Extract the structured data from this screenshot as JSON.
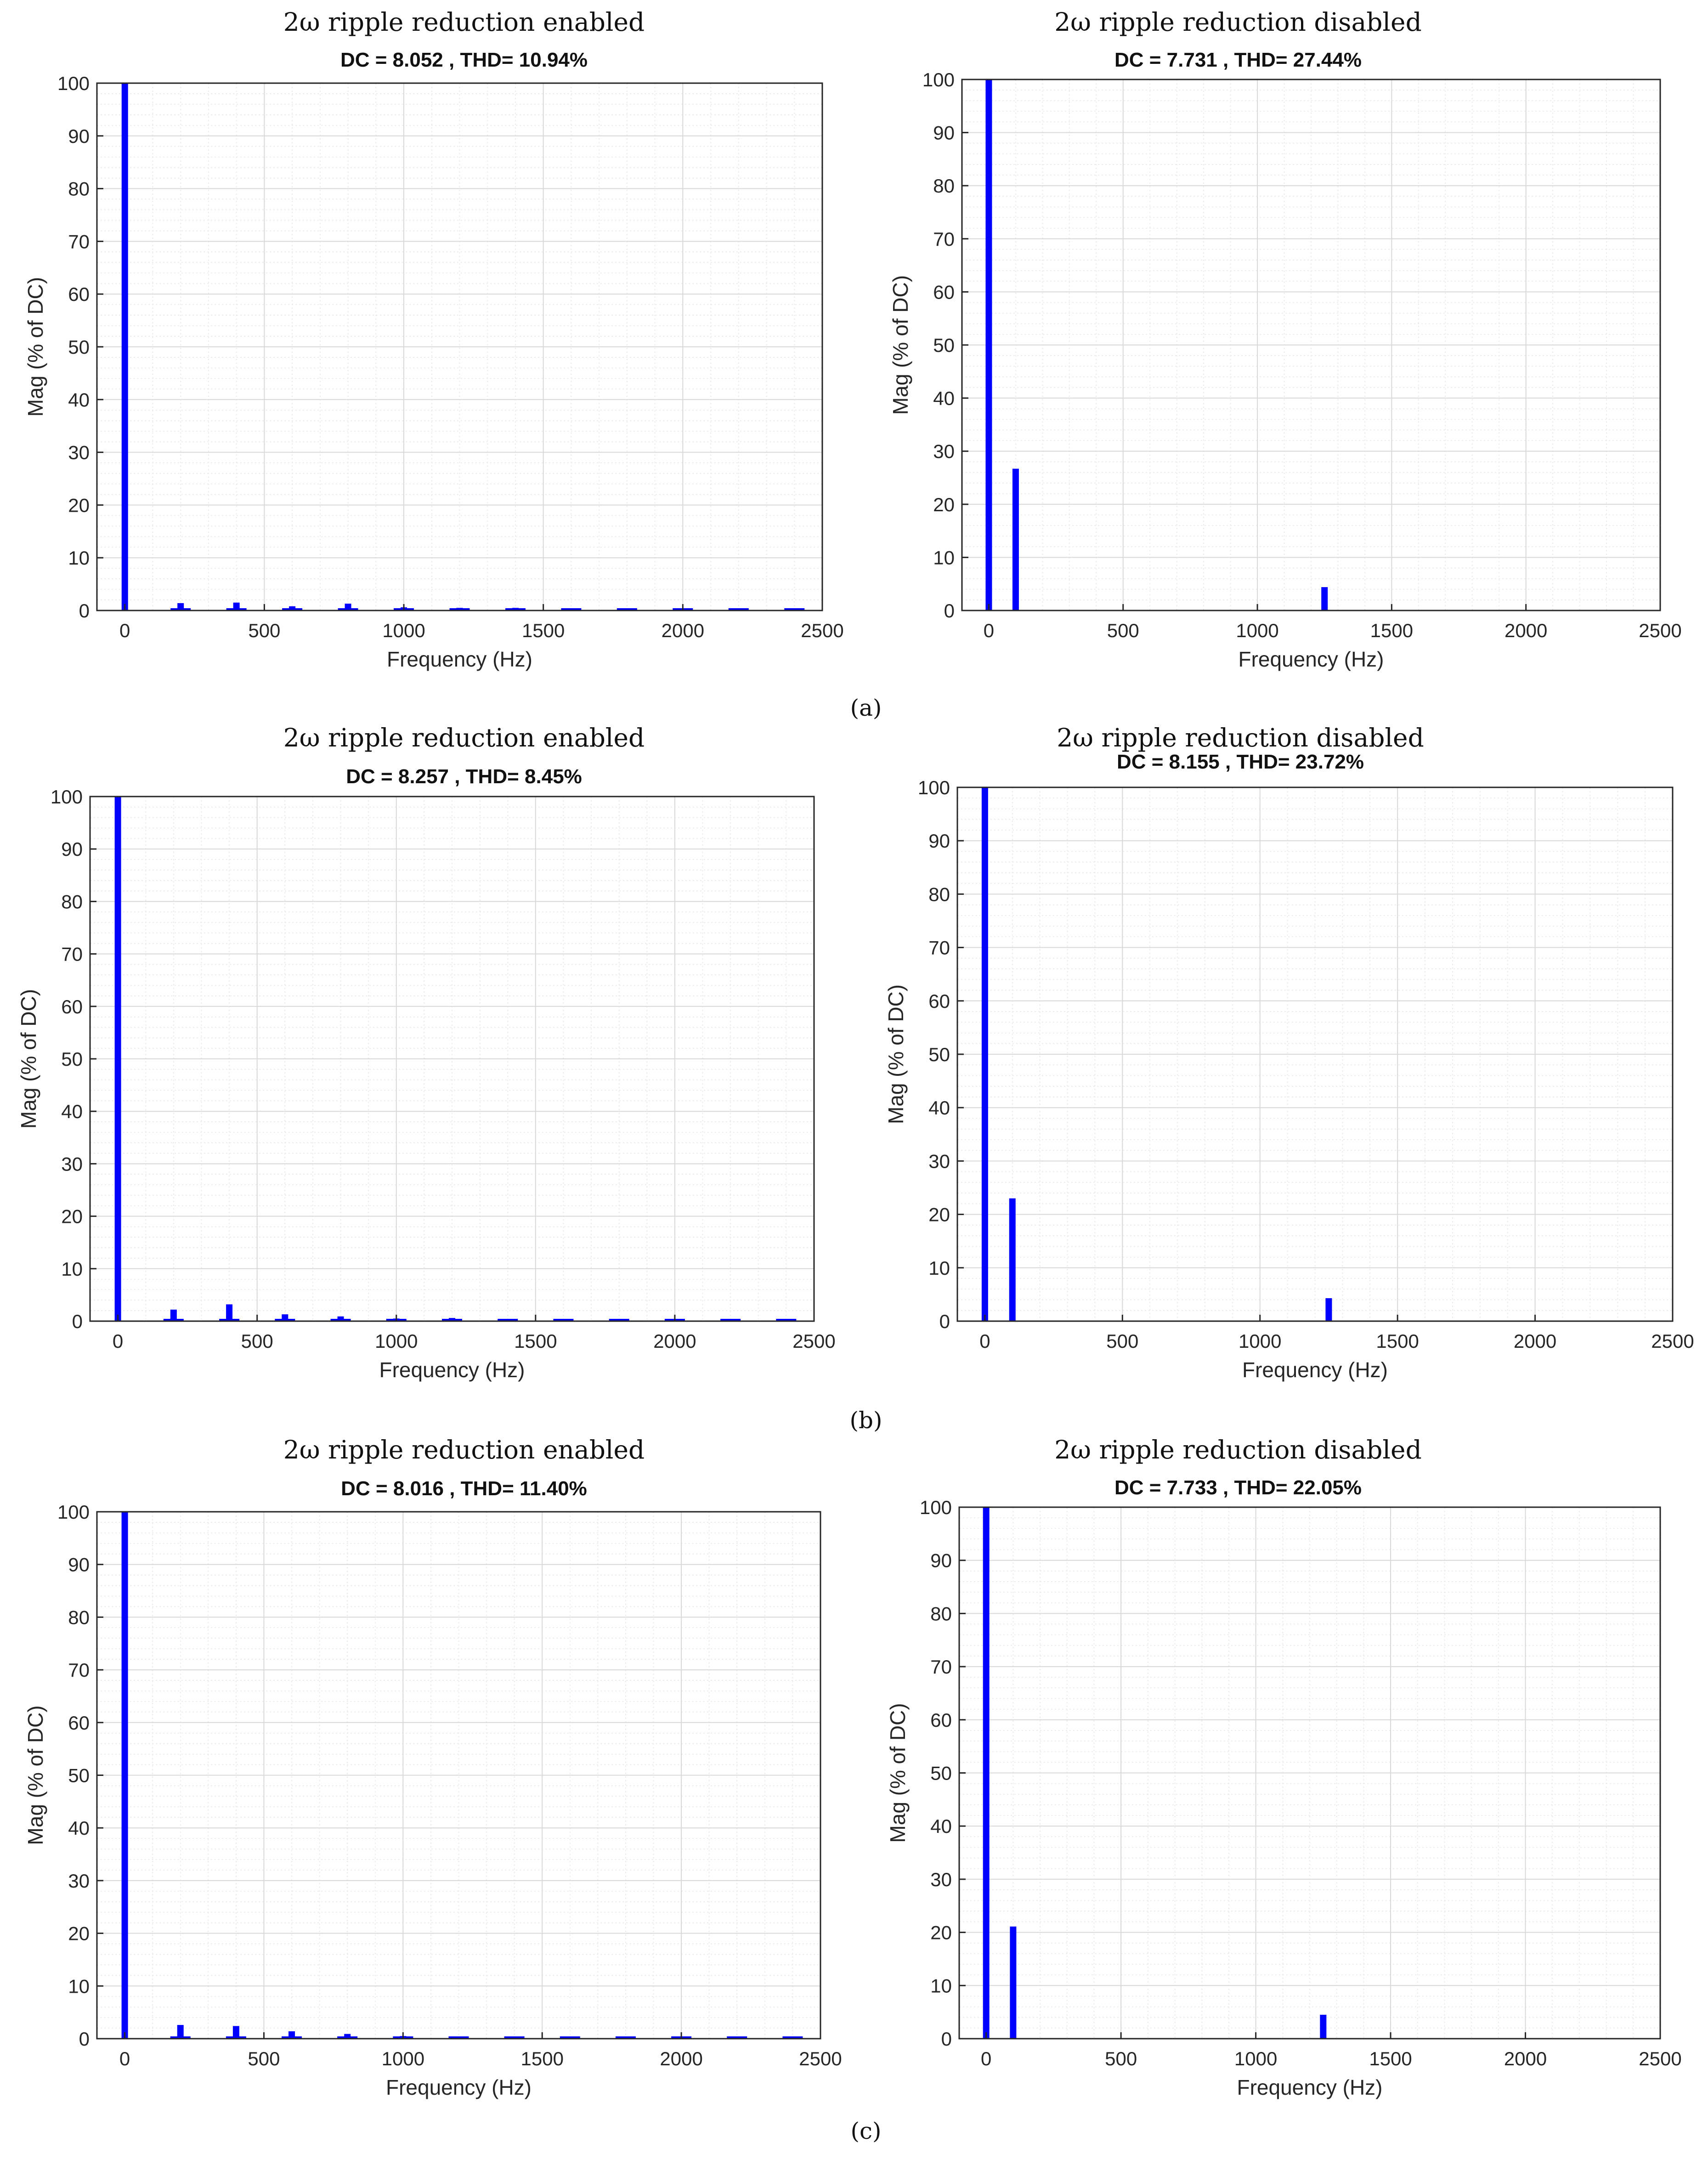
{
  "figure": {
    "captions": [
      "(a)",
      "(b)",
      "(c)"
    ],
    "bar_color": "#0000ff",
    "grid_color": "#d9d9d9"
  },
  "chart_data": [
    {
      "type": "bar",
      "title": "2ω ripple reduction enabled",
      "subtitle": "DC = 8.052 , THD= 10.94%",
      "xlabel": "Frequency (Hz)",
      "ylabel": "Mag (% of DC)",
      "xlim": [
        -100,
        2500
      ],
      "ylim": [
        0,
        100
      ],
      "xticks": [
        0,
        500,
        1000,
        1500,
        2000,
        2500
      ],
      "yticks": [
        0,
        10,
        20,
        30,
        40,
        50,
        60,
        70,
        80,
        90,
        100
      ],
      "grid": true,
      "x": [
        0,
        200,
        400,
        600,
        800,
        1000,
        1200,
        1400,
        1600,
        1800,
        2000,
        2200,
        2400
      ],
      "values": [
        100,
        1.4,
        1.5,
        0.8,
        1.3,
        0.6,
        0.5,
        0.5,
        0.4,
        0.4,
        0.4,
        0.4,
        0.3
      ]
    },
    {
      "type": "bar",
      "title": "2ω ripple reduction disabled",
      "subtitle": "DC = 7.731 , THD= 27.44%",
      "xlabel": "Frequency (Hz)",
      "ylabel": "Mag (% of DC)",
      "xlim": [
        -100,
        2500
      ],
      "ylim": [
        0,
        100
      ],
      "xticks": [
        0,
        500,
        1000,
        1500,
        2000,
        2500
      ],
      "yticks": [
        0,
        10,
        20,
        30,
        40,
        50,
        60,
        70,
        80,
        90,
        100
      ],
      "grid": true,
      "x": [
        0,
        100,
        1250
      ],
      "values": [
        100,
        26.7,
        4.4
      ]
    },
    {
      "type": "bar",
      "title": "2ω ripple reduction enabled",
      "subtitle": "DC = 8.257 , THD= 8.45%",
      "xlabel": "Frequency (Hz)",
      "ylabel": "Mag (% of DC)",
      "xlim": [
        -100,
        2500
      ],
      "ylim": [
        0,
        100
      ],
      "xticks": [
        0,
        500,
        1000,
        1500,
        2000,
        2500
      ],
      "yticks": [
        0,
        10,
        20,
        30,
        40,
        50,
        60,
        70,
        80,
        90,
        100
      ],
      "grid": true,
      "x": [
        0,
        200,
        400,
        600,
        800,
        1000,
        1200,
        1400,
        1600,
        1800,
        2000,
        2200,
        2400
      ],
      "values": [
        100,
        2.2,
        3.2,
        1.3,
        0.9,
        0.5,
        0.6,
        0.3,
        0.4,
        0.3,
        0.3,
        0.3,
        0.4
      ]
    },
    {
      "type": "bar",
      "title": "2ω ripple reduction disabled",
      "subtitle": "DC = 8.155 , THD= 23.72%",
      "xlabel": "Frequency (Hz)",
      "ylabel": "Mag (% of DC)",
      "xlim": [
        -100,
        2500
      ],
      "ylim": [
        0,
        100
      ],
      "xticks": [
        0,
        500,
        1000,
        1500,
        2000,
        2500
      ],
      "yticks": [
        0,
        10,
        20,
        30,
        40,
        50,
        60,
        70,
        80,
        90,
        100
      ],
      "grid": true,
      "x": [
        0,
        100,
        1250
      ],
      "values": [
        100,
        23.0,
        4.3
      ]
    },
    {
      "type": "bar",
      "title": "2ω ripple reduction enabled",
      "subtitle": "DC = 8.016 , THD= 11.40%",
      "xlabel": "Frequency (Hz)",
      "ylabel": "Mag (% of DC)",
      "xlim": [
        -100,
        2500
      ],
      "ylim": [
        0,
        100
      ],
      "xticks": [
        0,
        500,
        1000,
        1500,
        2000,
        2500
      ],
      "yticks": [
        0,
        10,
        20,
        30,
        40,
        50,
        60,
        70,
        80,
        90,
        100
      ],
      "grid": true,
      "x": [
        0,
        200,
        400,
        600,
        800,
        1000,
        1200,
        1400,
        1600,
        1800,
        2000,
        2200,
        2400
      ],
      "values": [
        100,
        2.6,
        2.4,
        1.4,
        0.9,
        0.5,
        0.4,
        0.4,
        0.3,
        0.3,
        0.3,
        0.3,
        0.2
      ]
    },
    {
      "type": "bar",
      "title": "2ω ripple reduction disabled",
      "subtitle": "DC = 7.733 , THD= 22.05%",
      "xlabel": "Frequency (Hz)",
      "ylabel": "Mag (% of DC)",
      "xlim": [
        -100,
        2500
      ],
      "ylim": [
        0,
        100
      ],
      "xticks": [
        0,
        500,
        1000,
        1500,
        2000,
        2500
      ],
      "yticks": [
        0,
        10,
        20,
        30,
        40,
        50,
        60,
        70,
        80,
        90,
        100
      ],
      "grid": true,
      "x": [
        0,
        100,
        1250
      ],
      "values": [
        100,
        21.1,
        4.5
      ]
    }
  ]
}
